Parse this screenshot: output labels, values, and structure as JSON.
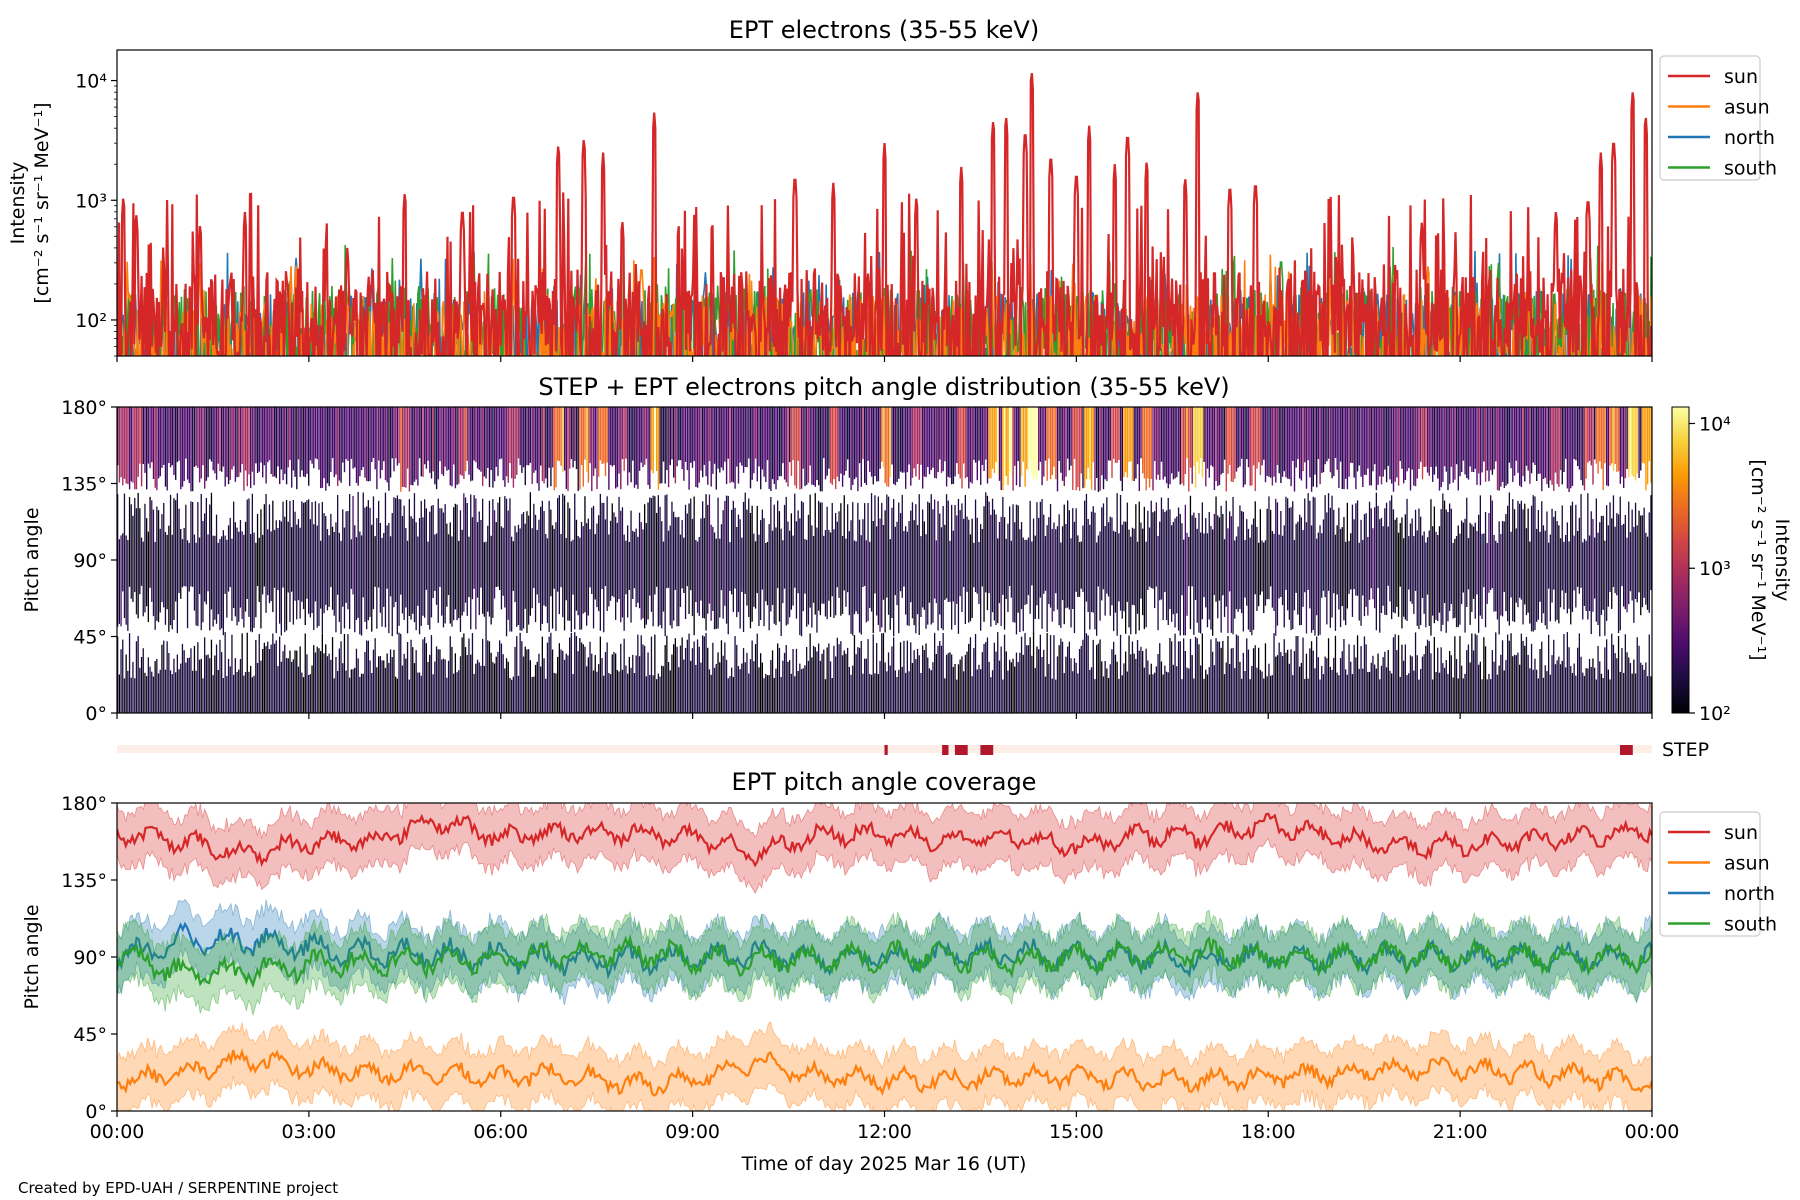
{
  "credit": "Created by EPD-UAH / SERPENTINE project",
  "colors": {
    "sun": "#d62728",
    "asun": "#ff7f0e",
    "north": "#1f77b4",
    "south": "#2ca02c",
    "step": "#b2182b",
    "step_bg": "#fdeee8"
  },
  "legend": [
    {
      "key": "sun",
      "label": "sun"
    },
    {
      "key": "asun",
      "label": "asun"
    },
    {
      "key": "north",
      "label": "north"
    },
    {
      "key": "south",
      "label": "south"
    }
  ],
  "x_axis": {
    "label": "Time of day 2025 Mar 16 (UT)",
    "range_hours": [
      0,
      24
    ],
    "ticks": [
      {
        "h": 0,
        "label": "00:00"
      },
      {
        "h": 3,
        "label": "03:00"
      },
      {
        "h": 6,
        "label": "06:00"
      },
      {
        "h": 9,
        "label": "09:00"
      },
      {
        "h": 12,
        "label": "12:00"
      },
      {
        "h": 15,
        "label": "15:00"
      },
      {
        "h": 18,
        "label": "18:00"
      },
      {
        "h": 21,
        "label": "21:00"
      },
      {
        "h": 24,
        "label": "00:00"
      }
    ]
  },
  "chart_data": [
    {
      "id": "intensity",
      "type": "line",
      "title": "EPT electrons (35-55 keV)",
      "ylabel": [
        "Intensity",
        "[cm⁻² s⁻¹ sr⁻¹ MeV⁻¹]"
      ],
      "yscale": "log",
      "ylim": [
        50,
        18000
      ],
      "yticks": [
        {
          "v": 100,
          "label": "10²"
        },
        {
          "v": 1000,
          "label": "10³"
        },
        {
          "v": 10000,
          "label": "10⁴"
        }
      ],
      "legend_placement": "outside-right",
      "series": [
        {
          "name": "sun",
          "key": "sun",
          "base": 130,
          "noise": 0.55,
          "peaks": [
            [
              0.1,
              1100
            ],
            [
              0.3,
              800
            ],
            [
              1.3,
              650
            ],
            [
              2.0,
              800
            ],
            [
              3.6,
              400
            ],
            [
              4.5,
              1200
            ],
            [
              5.4,
              900
            ],
            [
              6.2,
              1200
            ],
            [
              6.9,
              3000
            ],
            [
              7.3,
              3400
            ],
            [
              7.6,
              2500
            ],
            [
              7.9,
              700
            ],
            [
              8.4,
              5400
            ],
            [
              10.6,
              1700
            ],
            [
              11.2,
              1400
            ],
            [
              12.0,
              3000
            ],
            [
              12.5,
              1100
            ],
            [
              13.2,
              1900
            ],
            [
              13.7,
              4800
            ],
            [
              13.9,
              5200
            ],
            [
              14.2,
              4000
            ],
            [
              14.3,
              12300
            ],
            [
              14.6,
              2500
            ],
            [
              15.0,
              1800
            ],
            [
              15.2,
              4200
            ],
            [
              15.6,
              2000
            ],
            [
              15.8,
              3800
            ],
            [
              16.1,
              2200
            ],
            [
              16.7,
              1600
            ],
            [
              16.9,
              8500
            ],
            [
              17.4,
              1400
            ],
            [
              17.8,
              1500
            ],
            [
              20.4,
              650
            ],
            [
              22.5,
              850
            ],
            [
              23.0,
              1100
            ],
            [
              23.2,
              2500
            ],
            [
              23.4,
              3400
            ],
            [
              23.7,
              8500
            ],
            [
              23.9,
              5200
            ]
          ]
        },
        {
          "name": "asun",
          "key": "asun",
          "base": 85,
          "noise": 0.5,
          "peaks": [
            [
              8.2,
              300
            ],
            [
              20.5,
              300
            ]
          ]
        },
        {
          "name": "north",
          "key": "north",
          "base": 90,
          "noise": 0.5,
          "peaks": [
            [
              2.8,
              330
            ],
            [
              9.2,
              250
            ]
          ]
        },
        {
          "name": "south",
          "key": "south",
          "base": 100,
          "noise": 0.5,
          "peaks": [
            [
              18.2,
              350
            ],
            [
              21.6,
              300
            ],
            [
              19.9,
              300
            ]
          ]
        }
      ]
    },
    {
      "id": "pad",
      "type": "heatmap",
      "title": "STEP + EPT electrons pitch angle distribution (35-55 keV)",
      "ylabel": "Pitch angle",
      "ylim": [
        0,
        180
      ],
      "yticks": [
        {
          "v": 0,
          "label": "0°"
        },
        {
          "v": 45,
          "label": "45°"
        },
        {
          "v": 90,
          "label": "90°"
        },
        {
          "v": 135,
          "label": "135°"
        },
        {
          "v": 180,
          "label": "180°"
        }
      ],
      "colorbar": {
        "label": [
          "Intensity",
          "[cm⁻² s⁻¹ sr⁻¹ MeV⁻¹]"
        ],
        "scale": "log",
        "range": [
          100,
          13000
        ],
        "ticks": [
          {
            "v": 100,
            "label": "10²"
          },
          {
            "v": 1000,
            "label": "10³"
          },
          {
            "v": 10000,
            "label": "10⁴"
          }
        ],
        "colors": [
          "#000004",
          "#1b0c41",
          "#4a0c6b",
          "#781c6d",
          "#a52c60",
          "#cf4446",
          "#ed6925",
          "#fb9b06",
          "#f7d13d",
          "#fcffa4"
        ]
      }
    },
    {
      "id": "step",
      "type": "bar",
      "label": "STEP",
      "intervals_hours": [
        [
          12.0,
          12.05
        ],
        [
          12.9,
          13.0
        ],
        [
          13.1,
          13.3
        ],
        [
          13.5,
          13.7
        ],
        [
          23.5,
          23.7
        ]
      ]
    },
    {
      "id": "coverage",
      "type": "area",
      "title": "EPT pitch angle coverage",
      "ylabel": "Pitch angle",
      "ylim": [
        0,
        180
      ],
      "yticks": [
        {
          "v": 0,
          "label": "0°"
        },
        {
          "v": 45,
          "label": "45°"
        },
        {
          "v": 90,
          "label": "90°"
        },
        {
          "v": 135,
          "label": "135°"
        },
        {
          "v": 180,
          "label": "180°"
        }
      ],
      "legend_placement": "outside-right",
      "series": [
        {
          "name": "sun",
          "key": "sun",
          "x": [
            0,
            1,
            2,
            3,
            4,
            5,
            6,
            7,
            8,
            9,
            10,
            11,
            12,
            13,
            14,
            15,
            16,
            17,
            18,
            19,
            20,
            21,
            22,
            23,
            24
          ],
          "y": [
            162,
            158,
            150,
            157,
            158,
            170,
            160,
            163,
            163,
            160,
            150,
            162,
            162,
            158,
            160,
            155,
            162,
            160,
            168,
            160,
            155,
            155,
            158,
            160,
            165
          ]
        },
        {
          "name": "asun",
          "key": "asun",
          "x": [
            0,
            1,
            2,
            3,
            4,
            5,
            6,
            7,
            8,
            9,
            10,
            11,
            12,
            13,
            14,
            15,
            16,
            17,
            18,
            19,
            20,
            21,
            22,
            23,
            24
          ],
          "y": [
            18,
            22,
            30,
            25,
            22,
            22,
            20,
            22,
            15,
            18,
            30,
            20,
            18,
            18,
            20,
            20,
            18,
            18,
            20,
            22,
            25,
            25,
            22,
            20,
            15
          ]
        },
        {
          "name": "north",
          "key": "north",
          "x": [
            0,
            1,
            2,
            3,
            4,
            5,
            6,
            7,
            8,
            9,
            10,
            11,
            12,
            13,
            14,
            15,
            16,
            17,
            18,
            19,
            20,
            21,
            22,
            23,
            24
          ],
          "y": [
            88,
            100,
            100,
            95,
            92,
            92,
            90,
            88,
            88,
            90,
            92,
            90,
            90,
            90,
            92,
            90,
            90,
            88,
            90,
            90,
            90,
            90,
            90,
            90,
            90
          ]
        },
        {
          "name": "south",
          "key": "south",
          "x": [
            0,
            1,
            2,
            3,
            4,
            5,
            6,
            7,
            8,
            9,
            10,
            11,
            12,
            13,
            14,
            15,
            16,
            17,
            18,
            19,
            20,
            21,
            22,
            23,
            24
          ],
          "y": [
            92,
            80,
            82,
            85,
            88,
            88,
            90,
            92,
            92,
            90,
            88,
            90,
            90,
            90,
            88,
            90,
            90,
            92,
            90,
            90,
            90,
            90,
            90,
            90,
            90
          ]
        }
      ]
    }
  ]
}
